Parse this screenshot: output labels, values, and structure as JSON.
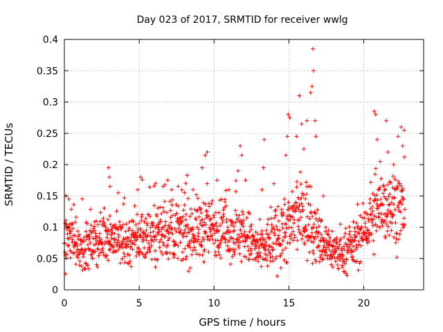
{
  "chart_data": {
    "type": "scatter",
    "title": "Day 023 of 2017, SRMTID for receiver wwlg",
    "xlabel": "GPS time / hours",
    "ylabel": "SRMTID / TECUs",
    "xlim": [
      0,
      24
    ],
    "ylim": [
      0,
      0.4
    ],
    "xticks": [
      0,
      5,
      10,
      15,
      20
    ],
    "xtick_labels": [
      "0",
      "5",
      "10",
      "15",
      "20"
    ],
    "yticks": [
      0,
      0.05,
      0.1,
      0.15,
      0.2,
      0.25,
      0.3,
      0.35,
      0.4
    ],
    "ytick_labels": [
      "0",
      "0.05",
      "0.1",
      "0.15",
      "0.2",
      "0.25",
      "0.3",
      "0.35",
      "0.4"
    ],
    "grid": true,
    "marker": "+",
    "color": "#ff0000",
    "x_end": 22.75,
    "sample_step_hours": 0.0167,
    "baseline_profile": [
      {
        "x": 0.0,
        "y": 0.085
      },
      {
        "x": 1.5,
        "y": 0.065
      },
      {
        "x": 2.8,
        "y": 0.09
      },
      {
        "x": 4.0,
        "y": 0.075
      },
      {
        "x": 5.2,
        "y": 0.085
      },
      {
        "x": 6.5,
        "y": 0.095
      },
      {
        "x": 8.0,
        "y": 0.09
      },
      {
        "x": 9.5,
        "y": 0.1
      },
      {
        "x": 11.0,
        "y": 0.095
      },
      {
        "x": 12.2,
        "y": 0.085
      },
      {
        "x": 13.0,
        "y": 0.06
      },
      {
        "x": 14.0,
        "y": 0.08
      },
      {
        "x": 15.0,
        "y": 0.1
      },
      {
        "x": 16.0,
        "y": 0.12
      },
      {
        "x": 17.0,
        "y": 0.08
      },
      {
        "x": 18.5,
        "y": 0.055
      },
      {
        "x": 19.5,
        "y": 0.075
      },
      {
        "x": 20.5,
        "y": 0.11
      },
      {
        "x": 21.5,
        "y": 0.14
      },
      {
        "x": 22.75,
        "y": 0.125
      }
    ],
    "spread_profile": [
      {
        "x": 0.0,
        "y": 0.03
      },
      {
        "x": 2.0,
        "y": 0.025
      },
      {
        "x": 5.0,
        "y": 0.03
      },
      {
        "x": 9.0,
        "y": 0.035
      },
      {
        "x": 12.5,
        "y": 0.03
      },
      {
        "x": 13.0,
        "y": 0.025
      },
      {
        "x": 15.0,
        "y": 0.04
      },
      {
        "x": 16.0,
        "y": 0.05
      },
      {
        "x": 17.0,
        "y": 0.03
      },
      {
        "x": 18.5,
        "y": 0.02
      },
      {
        "x": 20.0,
        "y": 0.03
      },
      {
        "x": 21.5,
        "y": 0.045
      },
      {
        "x": 22.75,
        "y": 0.04
      }
    ],
    "spikes": [
      {
        "x": 0.1,
        "y": 0.15
      },
      {
        "x": 0.3,
        "y": 0.145
      },
      {
        "x": 1.2,
        "y": 0.145
      },
      {
        "x": 2.95,
        "y": 0.195
      },
      {
        "x": 3.0,
        "y": 0.18
      },
      {
        "x": 3.05,
        "y": 0.165
      },
      {
        "x": 3.6,
        "y": 0.155
      },
      {
        "x": 4.9,
        "y": 0.16
      },
      {
        "x": 5.1,
        "y": 0.18
      },
      {
        "x": 6.1,
        "y": 0.17
      },
      {
        "x": 6.6,
        "y": 0.165
      },
      {
        "x": 6.9,
        "y": 0.175
      },
      {
        "x": 7.6,
        "y": 0.165
      },
      {
        "x": 8.1,
        "y": 0.17
      },
      {
        "x": 8.6,
        "y": 0.16
      },
      {
        "x": 9.2,
        "y": 0.195
      },
      {
        "x": 9.4,
        "y": 0.215
      },
      {
        "x": 9.55,
        "y": 0.22
      },
      {
        "x": 10.2,
        "y": 0.175
      },
      {
        "x": 11.0,
        "y": 0.16
      },
      {
        "x": 11.6,
        "y": 0.19
      },
      {
        "x": 11.75,
        "y": 0.23
      },
      {
        "x": 11.85,
        "y": 0.215
      },
      {
        "x": 12.1,
        "y": 0.175
      },
      {
        "x": 13.2,
        "y": 0.16
      },
      {
        "x": 13.3,
        "y": 0.195
      },
      {
        "x": 13.35,
        "y": 0.24
      },
      {
        "x": 14.8,
        "y": 0.215
      },
      {
        "x": 14.9,
        "y": 0.245
      },
      {
        "x": 14.95,
        "y": 0.28
      },
      {
        "x": 15.05,
        "y": 0.275
      },
      {
        "x": 15.5,
        "y": 0.245
      },
      {
        "x": 15.7,
        "y": 0.31
      },
      {
        "x": 15.85,
        "y": 0.265
      },
      {
        "x": 16.0,
        "y": 0.225
      },
      {
        "x": 16.2,
        "y": 0.27
      },
      {
        "x": 16.45,
        "y": 0.315
      },
      {
        "x": 16.55,
        "y": 0.325
      },
      {
        "x": 16.6,
        "y": 0.385
      },
      {
        "x": 16.65,
        "y": 0.35
      },
      {
        "x": 16.75,
        "y": 0.27
      },
      {
        "x": 16.8,
        "y": 0.245
      },
      {
        "x": 17.3,
        "y": 0.15
      },
      {
        "x": 20.7,
        "y": 0.285
      },
      {
        "x": 20.8,
        "y": 0.28
      },
      {
        "x": 20.9,
        "y": 0.24
      },
      {
        "x": 21.1,
        "y": 0.205
      },
      {
        "x": 21.5,
        "y": 0.27
      },
      {
        "x": 21.6,
        "y": 0.22
      },
      {
        "x": 22.0,
        "y": 0.2
      },
      {
        "x": 22.3,
        "y": 0.245
      },
      {
        "x": 22.5,
        "y": 0.26
      },
      {
        "x": 22.6,
        "y": 0.23
      },
      {
        "x": 22.7,
        "y": 0.255
      }
    ]
  }
}
